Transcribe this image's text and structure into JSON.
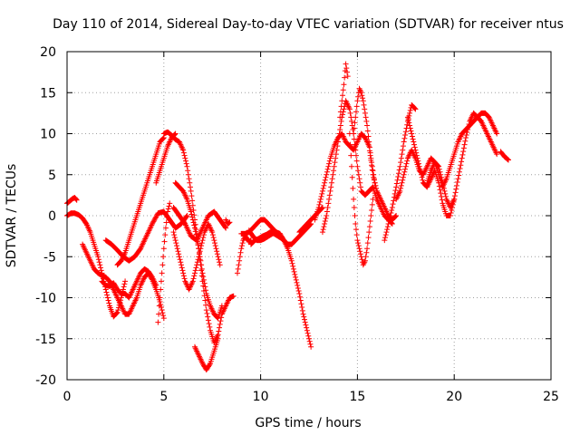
{
  "chart_data": {
    "type": "scatter",
    "title": "Day 110 of 2014, Sidereal Day-to-day VTEC variation (SDTVAR) for receiver ntus",
    "xlabel": "GPS time / hours",
    "ylabel": "SDTVAR / TECUs",
    "xlim": [
      0,
      25
    ],
    "ylim": [
      -20,
      20
    ],
    "xticks": [
      0,
      5,
      10,
      15,
      20,
      25
    ],
    "yticks": [
      -20,
      -15,
      -10,
      -5,
      0,
      5,
      10,
      15,
      20
    ],
    "grid": true,
    "marker": "+",
    "color": "#ff0000",
    "series": [
      {
        "x": [
          0.0,
          0.1,
          0.2,
          0.3,
          0.4,
          0.5
        ],
        "values": [
          1.5,
          1.7,
          1.9,
          2.1,
          2.2,
          1.9
        ]
      },
      {
        "x": [
          0.0,
          0.2,
          0.4,
          0.6,
          0.8,
          1.0,
          1.2,
          1.4,
          1.6,
          1.8,
          2.0,
          2.2,
          2.4,
          2.6,
          2.8,
          3.0
        ],
        "values": [
          0.0,
          0.3,
          0.3,
          0.1,
          -0.3,
          -1.0,
          -2.0,
          -3.5,
          -5.0,
          -7.0,
          -9.0,
          -11.0,
          -12.3,
          -11.8,
          -10.0,
          -8.0
        ]
      },
      {
        "x": [
          0.8,
          1.0,
          1.2,
          1.4,
          1.6,
          1.8,
          2.0,
          2.2,
          2.4,
          2.6,
          2.8,
          3.0,
          3.2,
          3.4,
          3.6,
          3.8,
          4.0,
          4.2,
          4.4,
          4.6,
          4.8,
          5.0
        ],
        "values": [
          -3.5,
          -4.5,
          -5.5,
          -6.5,
          -7.0,
          -7.3,
          -7.5,
          -8.0,
          -9.0,
          -10.0,
          -11.0,
          -12.0,
          -12.0,
          -11.0,
          -10.0,
          -8.5,
          -7.5,
          -7.0,
          -7.8,
          -9.0,
          -10.5,
          -12.5
        ]
      },
      {
        "x": [
          1.8,
          2.0,
          2.2,
          2.4,
          2.6,
          2.8,
          3.0,
          3.2,
          3.4,
          3.6,
          3.8,
          4.0,
          4.2,
          4.4,
          4.6
        ],
        "values": [
          -8.0,
          -8.5,
          -8.6,
          -8.2,
          -9.0,
          -9.5,
          -9.5,
          -10.0,
          -9.0,
          -8.0,
          -7.0,
          -6.5,
          -6.8,
          -7.5,
          -8.5
        ]
      },
      {
        "x": [
          2.0,
          2.3,
          2.6,
          2.9,
          3.2,
          3.5,
          3.8,
          4.1,
          4.4,
          4.7,
          5.0,
          5.3,
          5.6,
          5.9,
          6.2
        ],
        "values": [
          -3.0,
          -3.5,
          -4.2,
          -5.0,
          -5.5,
          -5.0,
          -4.0,
          -2.5,
          -1.0,
          0.3,
          0.5,
          -0.5,
          -1.5,
          -1.0,
          0.0
        ]
      },
      {
        "x": [
          2.6,
          2.8,
          3.0,
          3.2,
          3.4,
          3.6,
          3.8,
          4.0,
          4.2,
          4.4,
          4.6,
          4.8,
          5.0
        ],
        "values": [
          -6.0,
          -5.5,
          -4.5,
          -3.0,
          -1.5,
          0.0,
          1.5,
          3.0,
          4.5,
          6.0,
          7.5,
          9.0,
          9.5
        ]
      },
      {
        "x": [
          4.7,
          4.8,
          4.9,
          5.0,
          5.1,
          5.2,
          5.3
        ],
        "values": [
          -13.0,
          -10.0,
          -7.0,
          -4.0,
          -1.5,
          0.5,
          1.5
        ]
      },
      {
        "x": [
          4.6,
          4.8,
          5.0,
          5.2,
          5.4,
          5.6
        ],
        "values": [
          4.0,
          5.5,
          7.0,
          8.5,
          9.5,
          10.0
        ]
      },
      {
        "x": [
          5.0,
          5.2,
          5.4,
          5.6,
          5.8,
          6.0,
          6.2,
          6.4,
          6.6,
          6.8,
          7.0,
          7.2,
          7.4,
          7.6,
          7.8,
          8.0,
          8.2,
          8.4,
          8.6
        ],
        "values": [
          10.0,
          10.2,
          9.8,
          9.3,
          9.0,
          8.0,
          6.0,
          3.0,
          -0.5,
          -4.0,
          -8.0,
          -11.5,
          -14.0,
          -15.5,
          -14.5,
          -12.0,
          -11.0,
          -10.0,
          -9.8
        ]
      },
      {
        "x": [
          5.5,
          5.8,
          6.1,
          6.4,
          6.7,
          7.0,
          7.3,
          7.6,
          7.9,
          8.2
        ],
        "values": [
          1.0,
          0.0,
          -1.0,
          -2.5,
          -3.0,
          -1.5,
          0.0,
          0.5,
          -0.5,
          -1.5
        ]
      },
      {
        "x": [
          5.5,
          5.7,
          5.9,
          6.1,
          6.3,
          6.5,
          6.7,
          6.9,
          7.1,
          7.3,
          7.5,
          7.7,
          7.9
        ],
        "values": [
          -2.0,
          -4.0,
          -6.0,
          -8.0,
          -9.0,
          -8.0,
          -6.0,
          -4.0,
          -2.0,
          -1.0,
          -2.0,
          -4.0,
          -6.0
        ]
      },
      {
        "x": [
          5.6,
          5.8,
          6.0,
          6.2,
          6.4,
          6.6,
          6.8,
          7.0,
          7.2,
          7.4,
          7.6,
          7.8,
          8.0
        ],
        "values": [
          4.0,
          3.5,
          3.0,
          2.0,
          0.5,
          -1.5,
          -4.0,
          -7.0,
          -9.5,
          -11.0,
          -12.0,
          -12.5,
          -11.0
        ]
      },
      {
        "x": [
          6.6,
          6.8,
          7.0,
          7.2,
          7.4,
          7.6,
          7.8
        ],
        "values": [
          -16.0,
          -17.0,
          -18.0,
          -18.8,
          -18.0,
          -16.5,
          -15.0
        ]
      },
      {
        "x": [
          8.2,
          8.3,
          8.4
        ],
        "values": [
          -0.5,
          -1.0,
          -0.8
        ]
      },
      {
        "x": [
          8.8,
          8.9,
          9.0,
          9.1,
          9.2,
          9.3,
          9.4,
          9.5
        ],
        "values": [
          -7.0,
          -5.5,
          -4.0,
          -3.0,
          -2.5,
          -2.8,
          -3.2,
          -3.0
        ]
      },
      {
        "x": [
          9.0,
          9.2,
          9.4,
          9.6,
          9.8,
          10.0,
          10.2,
          10.4,
          10.6,
          10.8,
          11.0,
          11.2,
          11.4,
          11.6,
          11.8,
          12.0,
          12.2,
          12.4,
          12.6
        ],
        "values": [
          -2.2,
          -2.2,
          -2.0,
          -1.5,
          -1.0,
          -0.5,
          -0.5,
          -1.0,
          -1.5,
          -2.0,
          -2.5,
          -3.0,
          -4.0,
          -5.5,
          -7.5,
          -9.5,
          -12.0,
          -14.0,
          -16.0
        ]
      },
      {
        "x": [
          9.4,
          9.6,
          9.8,
          10.0,
          10.2,
          10.4,
          10.6,
          10.8,
          11.0,
          11.2,
          11.4,
          11.6,
          11.8,
          12.0,
          12.2,
          12.4,
          12.6
        ],
        "values": [
          -1.8,
          -2.5,
          -3.0,
          -3.0,
          -2.8,
          -2.5,
          -2.2,
          -2.0,
          -2.2,
          -3.0,
          -3.5,
          -3.5,
          -3.0,
          -2.5,
          -2.0,
          -1.5,
          -1.0
        ]
      },
      {
        "x": [
          9.5,
          9.7,
          9.9,
          10.1,
          10.3,
          10.5,
          10.7,
          10.9,
          11.1
        ],
        "values": [
          -3.5,
          -3.0,
          -2.8,
          -2.5,
          -2.3,
          -2.0,
          -2.2,
          -2.5,
          -2.8
        ]
      },
      {
        "x": [
          12.0,
          12.2,
          12.4,
          12.6,
          12.8,
          13.0,
          13.2
        ],
        "values": [
          -2.0,
          -1.5,
          -1.0,
          -0.5,
          0.0,
          0.5,
          1.0
        ]
      },
      {
        "x": [
          12.8,
          13.0,
          13.2,
          13.4,
          13.6,
          13.8,
          14.0,
          14.2,
          14.4,
          14.6,
          14.8,
          15.0,
          15.2,
          15.4,
          15.6,
          15.8,
          16.0
        ],
        "values": [
          -0.5,
          1.0,
          3.0,
          5.0,
          7.0,
          8.5,
          9.5,
          10.0,
          9.0,
          8.5,
          8.0,
          9.0,
          10.0,
          9.5,
          8.5,
          5.0,
          3.0
        ]
      },
      {
        "x": [
          13.2,
          13.4,
          13.6,
          13.8,
          14.0,
          14.2,
          14.4,
          14.6,
          14.8,
          15.0,
          15.2,
          15.4,
          15.6,
          15.8,
          16.0,
          16.2,
          16.4,
          16.6,
          16.8
        ],
        "values": [
          -2.0,
          0.0,
          3.0,
          6.0,
          9.0,
          12.0,
          14.0,
          13.0,
          10.0,
          6.0,
          3.0,
          2.5,
          3.0,
          3.5,
          2.0,
          1.0,
          0.0,
          -0.5,
          -1.0
        ]
      },
      {
        "x": [
          14.1,
          14.2,
          14.3,
          14.4,
          14.5
        ],
        "values": [
          12.0,
          14.0,
          16.0,
          18.5,
          17.0
        ]
      },
      {
        "x": [
          14.6,
          14.7,
          14.8,
          14.9,
          15.0,
          15.1,
          15.2,
          15.3,
          15.4,
          15.5,
          15.6,
          15.7,
          15.8
        ],
        "values": [
          10.0,
          6.0,
          2.0,
          -1.0,
          -3.0,
          -4.0,
          -5.0,
          -6.0,
          -5.5,
          -4.0,
          -2.0,
          0.0,
          2.0
        ]
      },
      {
        "x": [
          14.8,
          14.9,
          15.0,
          15.1,
          15.2,
          15.3,
          15.4,
          15.5,
          15.6,
          15.7,
          15.8,
          15.9,
          16.0,
          16.2,
          16.4,
          16.6,
          16.8,
          17.0
        ],
        "values": [
          10.0,
          12.0,
          14.0,
          15.5,
          15.0,
          14.0,
          12.5,
          11.0,
          9.0,
          7.0,
          5.5,
          4.0,
          3.0,
          2.0,
          1.0,
          0.0,
          -0.5,
          0.0
        ]
      },
      {
        "x": [
          16.4,
          16.6,
          16.8,
          17.0,
          17.2,
          17.4,
          17.6,
          17.8,
          18.0
        ],
        "values": [
          -3.0,
          -1.0,
          1.0,
          3.5,
          6.0,
          9.0,
          11.5,
          13.5,
          13.0
        ]
      },
      {
        "x": [
          17.0,
          17.2,
          17.4,
          17.6,
          17.8,
          18.0,
          18.2,
          18.4,
          18.6,
          18.8,
          19.0,
          19.2,
          19.4,
          19.6,
          19.8,
          20.0
        ],
        "values": [
          2.0,
          3.0,
          5.0,
          7.0,
          8.0,
          7.0,
          5.5,
          5.0,
          6.0,
          7.0,
          6.5,
          6.0,
          4.0,
          2.0,
          1.0,
          2.0
        ]
      },
      {
        "x": [
          17.6,
          17.8,
          18.0,
          18.2,
          18.4,
          18.6,
          18.8,
          19.0,
          19.2,
          19.4,
          19.6,
          19.8,
          20.0,
          20.2,
          20.4,
          20.6,
          20.8,
          21.0,
          21.2,
          21.4,
          21.6,
          21.8,
          22.0,
          22.2
        ],
        "values": [
          12.0,
          10.0,
          8.0,
          6.0,
          4.0,
          3.5,
          4.5,
          5.5,
          4.0,
          1.5,
          0.0,
          0.0,
          2.0,
          4.5,
          7.0,
          9.5,
          11.5,
          12.5,
          12.0,
          11.5,
          10.5,
          9.5,
          8.5,
          7.5
        ]
      },
      {
        "x": [
          18.6,
          18.8,
          19.0,
          19.2,
          19.4,
          19.6,
          19.8,
          20.0,
          20.2,
          20.4,
          20.6,
          20.8,
          21.0,
          21.2,
          21.4,
          21.6,
          21.8,
          22.0,
          22.2
        ],
        "values": [
          4.0,
          5.5,
          6.5,
          5.0,
          3.5,
          4.5,
          6.0,
          7.5,
          9.0,
          10.0,
          10.5,
          11.0,
          11.5,
          12.0,
          12.5,
          12.5,
          12.0,
          11.0,
          10.0
        ]
      },
      {
        "x": [
          22.4,
          22.5,
          22.6,
          22.7,
          22.8
        ],
        "values": [
          7.8,
          7.5,
          7.2,
          7.0,
          6.8
        ]
      }
    ]
  }
}
